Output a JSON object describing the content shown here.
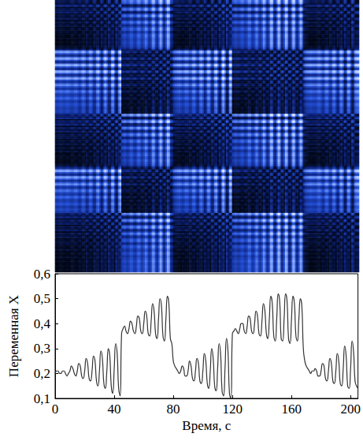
{
  "chart_data": [
    {
      "type": "recurrence_plot",
      "colors": [
        "#000614",
        "#0a1f78",
        "#2350d8",
        "#8fb0ff",
        "#ffffff"
      ],
      "tick_labels": false
    },
    {
      "type": "line",
      "color": "#333333",
      "xlabel": "Время, с",
      "ylabel": "Переменная X",
      "xlim": [
        0,
        205
      ],
      "ylim": [
        0.1,
        0.6
      ],
      "xticks": [
        0,
        40,
        80,
        120,
        160,
        200
      ],
      "yticks": [
        {
          "value": 0.1,
          "label": "0,1"
        },
        {
          "value": 0.2,
          "label": "0,2"
        },
        {
          "value": 0.3,
          "label": "0,3"
        },
        {
          "value": 0.4,
          "label": "0,4"
        },
        {
          "value": 0.5,
          "label": "0,5"
        },
        {
          "value": 0.6,
          "label": "0,6"
        }
      ],
      "x": [
        0,
        1,
        2,
        3,
        4,
        5,
        6,
        7,
        8,
        9,
        10,
        11,
        12,
        13,
        14,
        15,
        16,
        17,
        18,
        19,
        20,
        21,
        22,
        23,
        24,
        25,
        26,
        27,
        28,
        29,
        30,
        31,
        32,
        33,
        34,
        35,
        36,
        37,
        38,
        39,
        40,
        41,
        42,
        43,
        44,
        45,
        46,
        47,
        48,
        49,
        50,
        51,
        52,
        53,
        54,
        55,
        56,
        57,
        58,
        59,
        60,
        61,
        62,
        63,
        64,
        65,
        66,
        67,
        68,
        69,
        70,
        71,
        72,
        73,
        74,
        75,
        76,
        77,
        78,
        79,
        80,
        81,
        82,
        83,
        84,
        85,
        86,
        87,
        88,
        89,
        90,
        91,
        92,
        93,
        94,
        95,
        96,
        97,
        98,
        99,
        100,
        101,
        102,
        103,
        104,
        105,
        106,
        107,
        108,
        109,
        110,
        111,
        112,
        113,
        114,
        115,
        116,
        117,
        118,
        119,
        120,
        121,
        122,
        123,
        124,
        125,
        126,
        127,
        128,
        129,
        130,
        131,
        132,
        133,
        134,
        135,
        136,
        137,
        138,
        139,
        140,
        141,
        142,
        143,
        144,
        145,
        146,
        147,
        148,
        149,
        150,
        151,
        152,
        153,
        154,
        155,
        156,
        157,
        158,
        159,
        160,
        161,
        162,
        163,
        164,
        165,
        166,
        167,
        168,
        169,
        170,
        171,
        172,
        173,
        174,
        175,
        176,
        177,
        178,
        179,
        180,
        181,
        182,
        183,
        184,
        185,
        186,
        187,
        188,
        189,
        190,
        191,
        192,
        193,
        194,
        195,
        196,
        197,
        198,
        199,
        200,
        201,
        202,
        203,
        204,
        205
      ],
      "values": [
        0.2,
        0.21,
        0.21,
        0.2,
        0.2,
        0.21,
        0.21,
        0.2,
        0.19,
        0.2,
        0.21,
        0.23,
        0.22,
        0.2,
        0.19,
        0.21,
        0.24,
        0.23,
        0.19,
        0.18,
        0.21,
        0.26,
        0.24,
        0.18,
        0.17,
        0.21,
        0.27,
        0.25,
        0.17,
        0.15,
        0.21,
        0.29,
        0.26,
        0.16,
        0.14,
        0.21,
        0.3,
        0.27,
        0.15,
        0.12,
        0.22,
        0.32,
        0.28,
        0.14,
        0.11,
        0.36,
        0.38,
        0.39,
        0.37,
        0.36,
        0.38,
        0.41,
        0.4,
        0.37,
        0.36,
        0.39,
        0.43,
        0.42,
        0.37,
        0.36,
        0.4,
        0.45,
        0.43,
        0.36,
        0.35,
        0.41,
        0.48,
        0.45,
        0.36,
        0.34,
        0.42,
        0.5,
        0.47,
        0.35,
        0.33,
        0.42,
        0.51,
        0.48,
        0.34,
        0.32,
        0.25,
        0.23,
        0.22,
        0.21,
        0.2,
        0.21,
        0.23,
        0.22,
        0.19,
        0.19,
        0.21,
        0.25,
        0.23,
        0.18,
        0.17,
        0.21,
        0.26,
        0.24,
        0.17,
        0.16,
        0.21,
        0.28,
        0.25,
        0.16,
        0.14,
        0.21,
        0.3,
        0.26,
        0.15,
        0.13,
        0.22,
        0.32,
        0.28,
        0.13,
        0.11,
        0.22,
        0.34,
        0.29,
        0.12,
        0.1,
        0.36,
        0.37,
        0.38,
        0.37,
        0.36,
        0.38,
        0.4,
        0.4,
        0.37,
        0.36,
        0.39,
        0.43,
        0.42,
        0.37,
        0.36,
        0.4,
        0.45,
        0.43,
        0.36,
        0.35,
        0.41,
        0.48,
        0.45,
        0.36,
        0.34,
        0.42,
        0.51,
        0.48,
        0.35,
        0.33,
        0.42,
        0.52,
        0.49,
        0.34,
        0.33,
        0.42,
        0.52,
        0.49,
        0.34,
        0.32,
        0.42,
        0.51,
        0.48,
        0.35,
        0.33,
        0.42,
        0.5,
        0.47,
        0.3,
        0.25,
        0.23,
        0.22,
        0.21,
        0.2,
        0.21,
        0.21,
        0.22,
        0.21,
        0.19,
        0.19,
        0.21,
        0.24,
        0.23,
        0.18,
        0.17,
        0.21,
        0.26,
        0.24,
        0.17,
        0.16,
        0.21,
        0.28,
        0.25,
        0.16,
        0.15,
        0.22,
        0.31,
        0.27,
        0.15,
        0.14,
        0.22,
        0.33,
        0.29,
        0.17,
        0.15,
        0.14
      ]
    }
  ]
}
